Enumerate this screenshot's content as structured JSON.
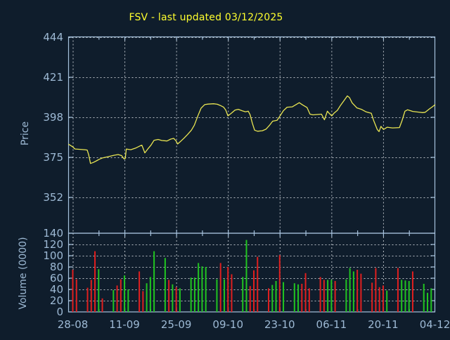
{
  "title": "FSV - last updated 03/12/2025",
  "colors": {
    "background": "#0f1d2c",
    "title": "#ffff2e",
    "axis_line": "#a6c1dc",
    "axis_text": "#9db9d4",
    "grid": "#b7bdc4",
    "price_line": "#e9e552",
    "volume_up": "#21c421",
    "volume_down": "#df1f1f"
  },
  "price_axis": {
    "label": "Price",
    "ticks": [
      444,
      421,
      398,
      375,
      352
    ]
  },
  "volume_axis": {
    "label": "Volume (0000)",
    "ticks": [
      140,
      120,
      100,
      80,
      60,
      40,
      20,
      0
    ]
  },
  "x_axis": {
    "labels": [
      "28-08",
      "11-09",
      "25-09",
      "09-10",
      "23-10",
      "06-11",
      "20-11",
      "04-12"
    ],
    "interval_days": 14,
    "minor_tick_days": 7
  },
  "chart_data": [
    {
      "type": "line",
      "name": "FSV daily price",
      "x_unit": "days since 28-08",
      "xlim": [
        -1.14,
        98
      ],
      "ylim": [
        331,
        444
      ],
      "grid": true,
      "points": [
        [
          -1.1,
          382.5
        ],
        [
          0,
          381
        ],
        [
          0.6,
          379.8
        ],
        [
          2,
          379.6
        ],
        [
          3.2,
          379.4
        ],
        [
          3.9,
          379.2
        ],
        [
          4.3,
          376.5
        ],
        [
          4.8,
          371.5
        ],
        [
          5.6,
          372.1
        ],
        [
          6.4,
          373
        ],
        [
          7.2,
          373.9
        ],
        [
          8.1,
          374.7
        ],
        [
          9.4,
          375.3
        ],
        [
          11.2,
          376.2
        ],
        [
          12.3,
          376.6
        ],
        [
          13.2,
          376
        ],
        [
          13.9,
          374.1
        ],
        [
          14.2,
          374.3
        ],
        [
          14.5,
          379.8
        ],
        [
          15.7,
          379.4
        ],
        [
          17.1,
          380.4
        ],
        [
          18.3,
          381.7
        ],
        [
          18.7,
          382
        ],
        [
          19.5,
          377.6
        ],
        [
          20.3,
          379.8
        ],
        [
          21.1,
          381.8
        ],
        [
          22,
          384.8
        ],
        [
          23.1,
          385.3
        ],
        [
          24.1,
          384.7
        ],
        [
          25.5,
          384.4
        ],
        [
          26.5,
          385.5
        ],
        [
          27.3,
          385.9
        ],
        [
          27.9,
          384.6
        ],
        [
          28.4,
          382.7
        ],
        [
          29.2,
          384.2
        ],
        [
          30.1,
          386
        ],
        [
          31.1,
          388.2
        ],
        [
          32.1,
          390.6
        ],
        [
          32.9,
          393.5
        ],
        [
          33.8,
          398.5
        ],
        [
          34.7,
          403.2
        ],
        [
          35.7,
          405.3
        ],
        [
          36.6,
          405.6
        ],
        [
          38.1,
          405.8
        ],
        [
          39.1,
          405.5
        ],
        [
          39.9,
          404.8
        ],
        [
          40.8,
          403.9
        ],
        [
          41.4,
          402.1
        ],
        [
          42,
          398.8
        ],
        [
          42.9,
          400.3
        ],
        [
          43.9,
          402.1
        ],
        [
          44.8,
          402.6
        ],
        [
          45.8,
          401.8
        ],
        [
          46.7,
          401.2
        ],
        [
          47.5,
          401.5
        ],
        [
          48,
          399.5
        ],
        [
          48.6,
          394.6
        ],
        [
          49.2,
          390.6
        ],
        [
          50,
          390
        ],
        [
          51.3,
          390.3
        ],
        [
          52.3,
          391.2
        ],
        [
          53.2,
          393.3
        ],
        [
          54.1,
          395.8
        ],
        [
          55.3,
          396.3
        ],
        [
          56,
          398.5
        ],
        [
          57,
          401.8
        ],
        [
          58,
          403.8
        ],
        [
          59.4,
          404
        ],
        [
          61.3,
          406.4
        ],
        [
          62.3,
          405
        ],
        [
          63.4,
          403.6
        ],
        [
          64.2,
          399.8
        ],
        [
          65,
          399.4
        ],
        [
          66.1,
          399.6
        ],
        [
          67.3,
          399.8
        ],
        [
          68.1,
          396.6
        ],
        [
          68.9,
          401.5
        ],
        [
          69.4,
          400.3
        ],
        [
          70.1,
          398.8
        ],
        [
          70.7,
          400.4
        ],
        [
          71.6,
          402
        ],
        [
          72.5,
          405
        ],
        [
          73.4,
          407.6
        ],
        [
          74.3,
          410.3
        ],
        [
          74.9,
          409.3
        ],
        [
          75.6,
          406.3
        ],
        [
          76.9,
          403.4
        ],
        [
          78.1,
          402.6
        ],
        [
          79.4,
          401.1
        ],
        [
          80.8,
          400.3
        ],
        [
          81.4,
          396.3
        ],
        [
          82.4,
          391
        ],
        [
          82.9,
          389.8
        ],
        [
          83.4,
          392.8
        ],
        [
          84.1,
          391
        ],
        [
          85.1,
          392.3
        ],
        [
          86.5,
          391.9
        ],
        [
          88.4,
          392.1
        ],
        [
          89.1,
          396
        ],
        [
          89.9,
          401.5
        ],
        [
          90.6,
          402.3
        ],
        [
          92,
          401.4
        ],
        [
          93.6,
          401
        ],
        [
          94.7,
          400.7
        ],
        [
          95.4,
          400.9
        ],
        [
          96.5,
          402.8
        ],
        [
          97.3,
          404
        ],
        [
          98,
          405.2
        ]
      ]
    },
    {
      "type": "bar",
      "name": "FSV daily volume",
      "x_unit": "days since 28-08",
      "unit": "0000",
      "ylim": [
        0,
        140
      ],
      "grid": true,
      "bars": [
        [
          0,
          75,
          "d"
        ],
        [
          1,
          58,
          "d"
        ],
        [
          4,
          43,
          "d"
        ],
        [
          5,
          57,
          "d"
        ],
        [
          6,
          108,
          "d"
        ],
        [
          7,
          76,
          "u"
        ],
        [
          8,
          24,
          "d"
        ],
        [
          11,
          39,
          "u"
        ],
        [
          12,
          47,
          "d"
        ],
        [
          13,
          58,
          "d"
        ],
        [
          14,
          65,
          "u"
        ],
        [
          15,
          40,
          "u"
        ],
        [
          18,
          72,
          "d"
        ],
        [
          19,
          37,
          "d"
        ],
        [
          20,
          51,
          "u"
        ],
        [
          21,
          62,
          "u"
        ],
        [
          22,
          108,
          "u"
        ],
        [
          25,
          96,
          "u"
        ],
        [
          26,
          57,
          "d"
        ],
        [
          27,
          49,
          "u"
        ],
        [
          28,
          44,
          "d"
        ],
        [
          29,
          42,
          "u"
        ],
        [
          32,
          61,
          "u"
        ],
        [
          33,
          61,
          "u"
        ],
        [
          34,
          87,
          "u"
        ],
        [
          35,
          81,
          "u"
        ],
        [
          36,
          80,
          "u"
        ],
        [
          39,
          58,
          "u"
        ],
        [
          40,
          87,
          "d"
        ],
        [
          41,
          58,
          "u"
        ],
        [
          42,
          80,
          "d"
        ],
        [
          43,
          67,
          "d"
        ],
        [
          46,
          62,
          "u"
        ],
        [
          47,
          128,
          "u"
        ],
        [
          48,
          46,
          "d"
        ],
        [
          49,
          74,
          "d"
        ],
        [
          50,
          98,
          "d"
        ],
        [
          53,
          42,
          "d"
        ],
        [
          54,
          48,
          "u"
        ],
        [
          55,
          55,
          "u"
        ],
        [
          56,
          101,
          "d"
        ],
        [
          57,
          53,
          "u"
        ],
        [
          60,
          51,
          "u"
        ],
        [
          61,
          49,
          "u"
        ],
        [
          62,
          50,
          "d"
        ],
        [
          63,
          69,
          "d"
        ],
        [
          64,
          42,
          "d"
        ],
        [
          67,
          62,
          "d"
        ],
        [
          68,
          57,
          "d"
        ],
        [
          69,
          57,
          "u"
        ],
        [
          70,
          57,
          "u"
        ],
        [
          71,
          55,
          "d"
        ],
        [
          74,
          58,
          "u"
        ],
        [
          75,
          78,
          "u"
        ],
        [
          76,
          72,
          "u"
        ],
        [
          77,
          75,
          "d"
        ],
        [
          78,
          68,
          "d"
        ],
        [
          81,
          52,
          "d"
        ],
        [
          82,
          78,
          "d"
        ],
        [
          83,
          44,
          "d"
        ],
        [
          84,
          47,
          "d"
        ],
        [
          85,
          38,
          "u"
        ],
        [
          88,
          78,
          "d"
        ],
        [
          89,
          57,
          "u"
        ],
        [
          90,
          56,
          "u"
        ],
        [
          91,
          55,
          "u"
        ],
        [
          92,
          72,
          "d"
        ],
        [
          95,
          50,
          "u"
        ],
        [
          96,
          34,
          "u"
        ],
        [
          97,
          42,
          "u"
        ]
      ]
    }
  ]
}
